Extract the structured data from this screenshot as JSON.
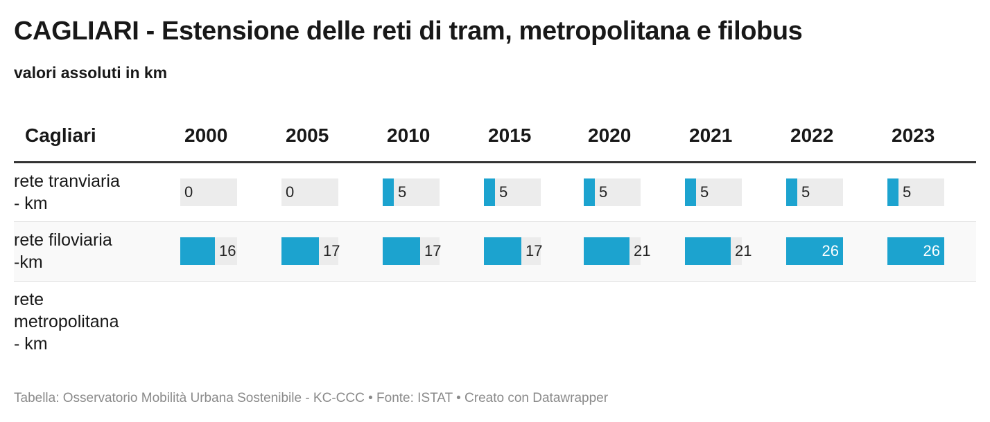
{
  "title": "CAGLIARI - Estensione delle reti di tram, metropolitana e filobus",
  "subtitle": "valori assoluti in km",
  "footer": "Tabella: Osservatorio Mobilità Urbana Sostenibile - KC-CCC • Fonte: ISTAT • Creato con Datawrapper",
  "colors": {
    "bar": "#1ca3cf",
    "track": "#ececec",
    "header_rule": "#333333"
  },
  "chart_data": {
    "type": "table",
    "row_header": "Cagliari",
    "columns": [
      "2000",
      "2005",
      "2010",
      "2015",
      "2020",
      "2021",
      "2022",
      "2023"
    ],
    "max_value": 26,
    "rows": [
      {
        "label": "rete tranviaria\n- km",
        "values": [
          0,
          0,
          5,
          5,
          5,
          5,
          5,
          5
        ]
      },
      {
        "label": "rete filoviaria\n-km",
        "values": [
          16,
          17,
          17,
          17,
          21,
          21,
          26,
          26
        ]
      },
      {
        "label": "rete\nmetropolitana\n- km",
        "values": [
          null,
          null,
          null,
          null,
          null,
          null,
          null,
          null
        ]
      }
    ]
  }
}
